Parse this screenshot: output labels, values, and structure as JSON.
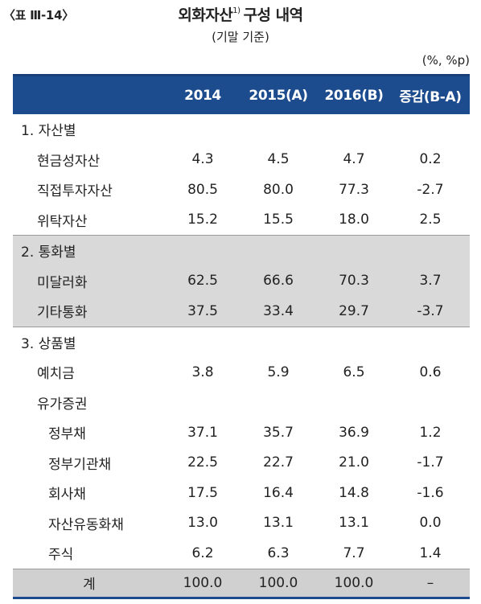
{
  "header": {
    "table_label": "〈표 Ⅲ-14〉",
    "title": "외화자산",
    "title_note": "1)",
    "title_suffix": "구성 내역",
    "subtitle": "(기말 기준)",
    "unit": "(%, %p)"
  },
  "columns": [
    "",
    "2014",
    "2015(A)",
    "2016(B)",
    "증감(B-A)"
  ],
  "rows": [
    {
      "type": "section",
      "label": "1. 자산별",
      "values": [
        "",
        "",
        "",
        ""
      ]
    },
    {
      "type": "item",
      "label": "현금성자산",
      "values": [
        "4.3",
        "4.5",
        "4.7",
        "0.2"
      ]
    },
    {
      "type": "item",
      "label": "직접투자자산",
      "values": [
        "80.5",
        "80.0",
        "77.3",
        "-2.7"
      ]
    },
    {
      "type": "item",
      "label": "위탁자산",
      "values": [
        "15.2",
        "15.5",
        "18.0",
        "2.5"
      ]
    },
    {
      "type": "section",
      "label": "2. 통화별",
      "values": [
        "",
        "",
        "",
        ""
      ]
    },
    {
      "type": "item",
      "label": "미달러화",
      "values": [
        "62.5",
        "66.6",
        "70.3",
        "3.7"
      ]
    },
    {
      "type": "item",
      "label": "기타통화",
      "values": [
        "37.5",
        "33.4",
        "29.7",
        "-3.7"
      ]
    },
    {
      "type": "section",
      "label": "3. 상품별",
      "values": [
        "",
        "",
        "",
        ""
      ]
    },
    {
      "type": "item",
      "label": "예치금",
      "values": [
        "3.8",
        "5.9",
        "6.5",
        "0.6"
      ]
    },
    {
      "type": "item",
      "label": "유가증권",
      "values": [
        "",
        "",
        "",
        ""
      ]
    },
    {
      "type": "sub",
      "label": "정부채",
      "values": [
        "37.1",
        "35.7",
        "36.9",
        "1.2"
      ]
    },
    {
      "type": "sub",
      "label": "정부기관채",
      "values": [
        "22.5",
        "22.7",
        "21.0",
        "-1.7"
      ]
    },
    {
      "type": "sub",
      "label": "회사채",
      "values": [
        "17.5",
        "16.4",
        "14.8",
        "-1.6"
      ]
    },
    {
      "type": "sub",
      "label": "자산유동화채",
      "values": [
        "13.0",
        "13.1",
        "13.1",
        "0.0"
      ]
    },
    {
      "type": "sub",
      "label": "주식",
      "values": [
        "6.2",
        "6.3",
        "7.7",
        "1.4"
      ]
    },
    {
      "type": "total",
      "label": "계",
      "values": [
        "100.0",
        "100.0",
        "100.0",
        "–"
      ]
    }
  ]
}
